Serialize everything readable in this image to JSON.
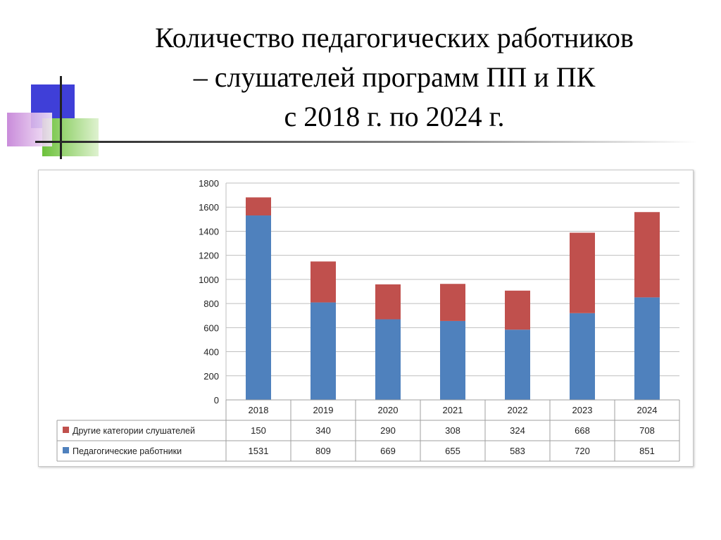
{
  "slide": {
    "title_lines": [
      "Количество педагогических работников",
      "– слушателей программ ПП и ПК",
      "с 2018 г. по 2024 г."
    ]
  },
  "colors": {
    "series_top": "#c0504d",
    "series_bottom": "#4f81bd",
    "deco_blue": "#3f3fd8",
    "deco_green": "#6cc13a",
    "deco_violet": "#c37fd6"
  },
  "chart_data": {
    "type": "bar",
    "stacked": true,
    "categories": [
      "2018",
      "2019",
      "2020",
      "2021",
      "2022",
      "2023",
      "2024"
    ],
    "series": [
      {
        "name": "Педагогические работники",
        "values": [
          1531,
          809,
          669,
          655,
          583,
          720,
          851
        ]
      },
      {
        "name": "Другие категории слушателей",
        "values": [
          150,
          340,
          290,
          308,
          324,
          668,
          708
        ]
      }
    ],
    "ylim": [
      0,
      1800
    ],
    "yticks": [
      0,
      200,
      400,
      600,
      800,
      1000,
      1200,
      1400,
      1600,
      1800
    ],
    "grid": true,
    "legend": "data-table-below",
    "data_table_rows": [
      {
        "label": "Другие категории слушателей",
        "values": [
          "150",
          "340",
          "290",
          "308",
          "324",
          "668",
          "708"
        ]
      },
      {
        "label": "Педагогические работники",
        "values": [
          "1531",
          "809",
          "669",
          "655",
          "583",
          "720",
          "851"
        ]
      }
    ]
  }
}
